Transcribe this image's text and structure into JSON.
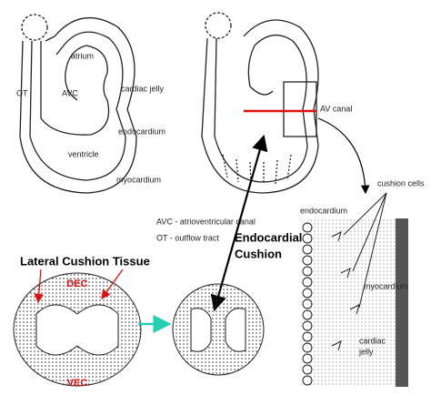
{
  "left_heart": {
    "atrium": "atrium",
    "avc": "AVC",
    "ot": "OT",
    "cardiac_jelly": "cardiac jelly",
    "endocardium": "endocardium",
    "ventricle": "ventricle",
    "myocardium": "myocardium"
  },
  "right_heart": {
    "av_canal": "AV canal"
  },
  "legend": [
    "AVC - atrioventricular canal",
    "OT - outflow tract"
  ],
  "endocardial_cushion": [
    "Endocardial",
    "Cushion"
  ],
  "cross_section": {
    "title": "Lateral Cushion Tissue",
    "dec": "DEC",
    "vec": "VEC"
  },
  "detail": {
    "endocardium": "endocardium",
    "cushion_cells": "cushion cells",
    "myocardium": "myocardium",
    "cardiac_jelly": [
      "cardiac",
      "jelly"
    ]
  }
}
